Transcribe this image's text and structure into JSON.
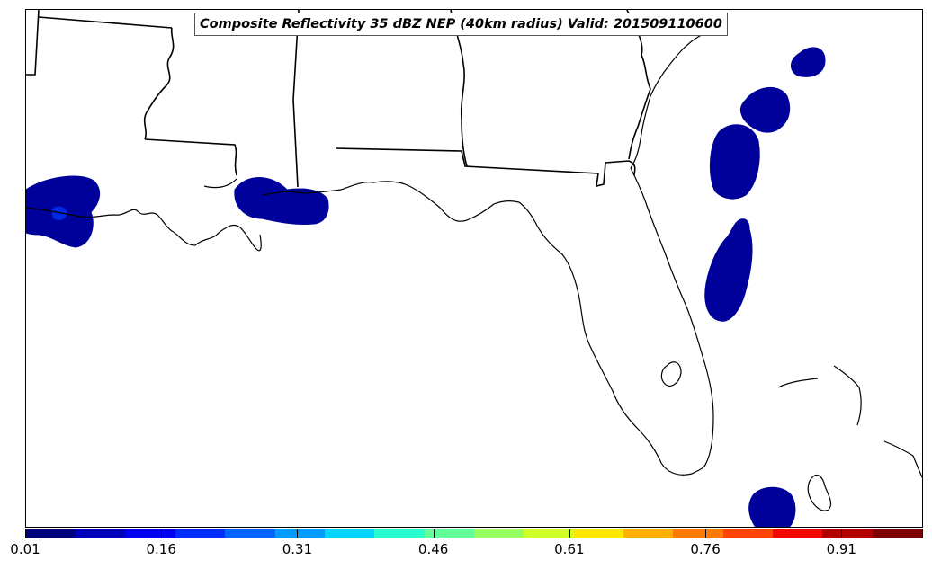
{
  "title": "Composite Reflectivity 35 dBZ NEP (40km radius) Valid: 201509110600",
  "colors": {
    "probability_fill": "#00009a",
    "probability_fill_high": "#0028e0",
    "coastline": "#000000",
    "colorbar": [
      "#00007f",
      "#0000b9",
      "#0000f3",
      "#002cff",
      "#0064ff",
      "#009cff",
      "#00d4ff",
      "#29ffce",
      "#60ff97",
      "#97ff60",
      "#ceff29",
      "#ffe600",
      "#ffb000",
      "#ff7a00",
      "#ff4300",
      "#f10800",
      "#b20000",
      "#7f0000"
    ]
  },
  "colorbar": {
    "min": 0.01,
    "max": 1.0,
    "tick_labels": [
      "0.01",
      "0.16",
      "0.31",
      "0.46",
      "0.61",
      "0.76",
      "0.91"
    ],
    "tick_values": [
      0.01,
      0.16,
      0.31,
      0.46,
      0.61,
      0.76,
      0.91
    ]
  }
}
